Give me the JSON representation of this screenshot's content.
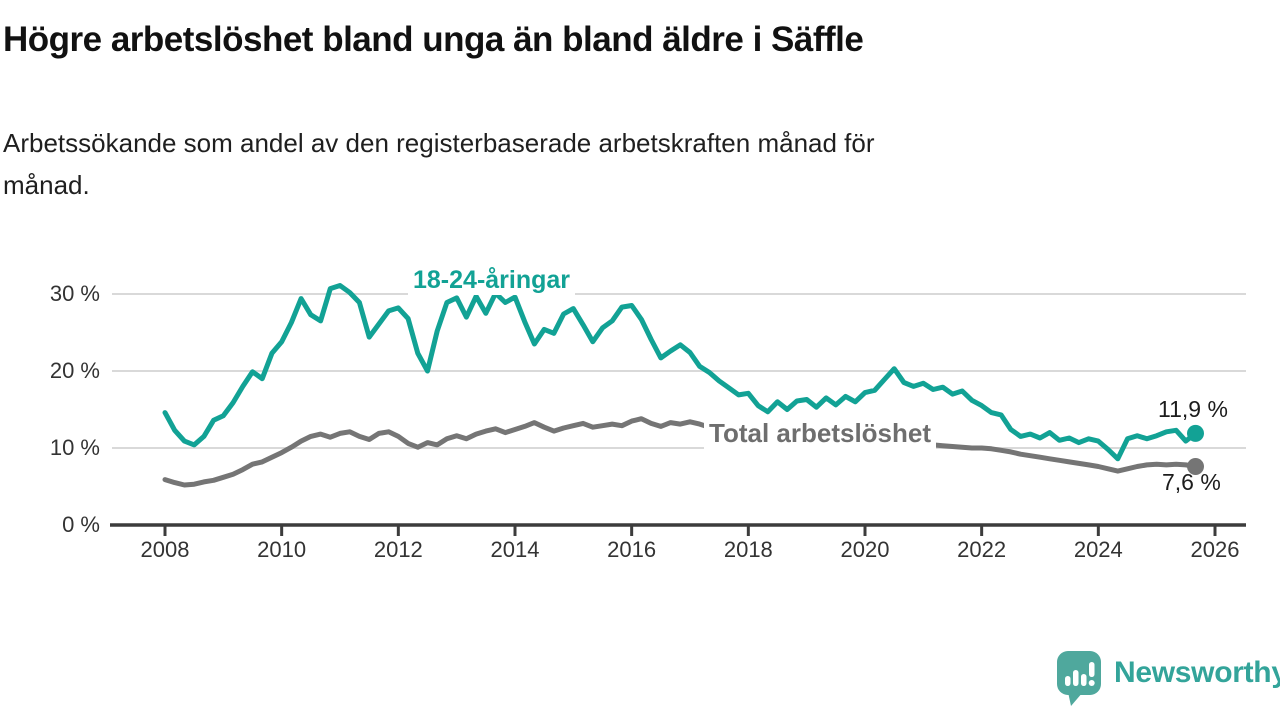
{
  "header": {
    "title": "Högre arbetslöshet bland unga än bland äldre i Säffle",
    "subtitle_line1": "Arbetssökande som andel av den registerbaserade arbetskraften månad för",
    "subtitle_line2": "månad."
  },
  "chart_data": {
    "type": "line",
    "x_start_year": 2008,
    "x_step_months": 2,
    "xlim": [
      2007.1,
      2026.5
    ],
    "ylim": [
      0,
      33
    ],
    "grid": true,
    "y_axis": {
      "ticks": [
        0,
        10,
        20,
        30
      ],
      "labels": [
        "0 %",
        "10 %",
        "20 %",
        "30 %"
      ]
    },
    "x_axis": {
      "ticks": [
        2008,
        2010,
        2012,
        2014,
        2016,
        2018,
        2020,
        2022,
        2024,
        2026
      ],
      "labels": [
        "2008",
        "2010",
        "2012",
        "2014",
        "2016",
        "2018",
        "2020",
        "2022",
        "2024",
        "2026"
      ]
    },
    "gridline_color": "#D9D9D9",
    "axis_color": "#3C3C3C",
    "series": [
      {
        "name": "Total arbetslöshet",
        "color": "#757575",
        "end_label": "7,6 %",
        "end_value": 7.6,
        "values": [
          5.9,
          5.5,
          5.2,
          5.3,
          5.6,
          5.8,
          6.2,
          6.6,
          7.2,
          7.9,
          8.2,
          8.8,
          9.4,
          10.1,
          10.9,
          11.5,
          11.8,
          11.4,
          11.9,
          12.1,
          11.5,
          11.1,
          11.9,
          12.1,
          11.5,
          10.6,
          10.1,
          10.7,
          10.4,
          11.2,
          11.6,
          11.2,
          11.8,
          12.2,
          12.5,
          12.0,
          12.4,
          12.8,
          13.3,
          12.7,
          12.2,
          12.6,
          12.9,
          13.2,
          12.7,
          12.9,
          13.1,
          12.9,
          13.5,
          13.8,
          13.2,
          12.8,
          13.3,
          13.1,
          13.4,
          13.1,
          12.7,
          12.9,
          12.4,
          12.2,
          12.0,
          11.8,
          11.6,
          11.4,
          11.3,
          11.2,
          11.1,
          11.0,
          10.9,
          10.8,
          10.8,
          10.9,
          11.0,
          11.1,
          11.2,
          11.1,
          11.0,
          10.8,
          10.6,
          10.4,
          10.3,
          10.2,
          10.1,
          10.0,
          10.0,
          9.9,
          9.7,
          9.5,
          9.2,
          9.0,
          8.8,
          8.6,
          8.4,
          8.2,
          8.0,
          7.8,
          7.6,
          7.3,
          7.0,
          7.3,
          7.6,
          7.8,
          7.9,
          7.8,
          7.9,
          7.8,
          7.6
        ]
      },
      {
        "name": "18-24-åringar",
        "color": "#12A295",
        "end_label": "11,9 %",
        "end_value": 11.9,
        "values": [
          14.6,
          12.3,
          10.9,
          10.4,
          11.5,
          13.6,
          14.2,
          15.9,
          18.0,
          19.9,
          19.0,
          22.3,
          23.8,
          26.3,
          29.4,
          27.3,
          26.5,
          30.7,
          31.1,
          30.2,
          28.9,
          24.4,
          26.1,
          27.8,
          28.2,
          26.8,
          22.3,
          20.0,
          25.2,
          28.9,
          29.5,
          27.0,
          29.7,
          27.5,
          30.1,
          28.9,
          29.6,
          26.4,
          23.5,
          25.4,
          24.9,
          27.4,
          28.1,
          26.0,
          23.8,
          25.6,
          26.5,
          28.3,
          28.5,
          26.7,
          24.1,
          21.7,
          22.6,
          23.4,
          22.4,
          20.6,
          19.8,
          18.7,
          17.8,
          16.9,
          17.1,
          15.5,
          14.7,
          16.0,
          15.0,
          16.1,
          16.3,
          15.3,
          16.5,
          15.6,
          16.7,
          16.0,
          17.2,
          17.5,
          18.9,
          20.3,
          18.5,
          18.0,
          18.4,
          17.6,
          17.9,
          17.0,
          17.4,
          16.2,
          15.5,
          14.6,
          14.3,
          12.4,
          11.5,
          11.8,
          11.3,
          12.0,
          11.0,
          11.3,
          10.7,
          11.2,
          10.9,
          9.8,
          8.6,
          11.2,
          11.6,
          11.2,
          11.6,
          12.1,
          12.3,
          10.9,
          11.9
        ]
      }
    ]
  },
  "footer": {
    "brand": "Newsworthy",
    "brand_color": "#33A49A",
    "logo_bubble_color": "#4FA89D"
  }
}
